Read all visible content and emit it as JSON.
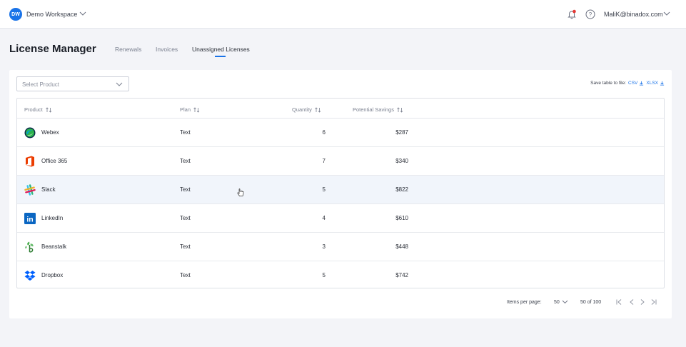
{
  "workspace": {
    "initials": "DW",
    "name": "Demo Workspace"
  },
  "user": {
    "email": "MaliK@binadox.com"
  },
  "page": {
    "title": "License Manager",
    "tabs": [
      {
        "label": "Renewals",
        "active": false
      },
      {
        "label": "Invoices",
        "active": false
      },
      {
        "label": "Unassigned Licenses",
        "active": true
      }
    ]
  },
  "filters": {
    "product_placeholder": "Select Product"
  },
  "export": {
    "label": "Save table to file:",
    "csv": "CSV",
    "xlsx": "XLSX"
  },
  "table": {
    "columns": [
      "Product",
      "Plan",
      "Quantity",
      "Potential Savings"
    ],
    "rows": [
      {
        "product": "Webex",
        "plan": "Text",
        "quantity": "6",
        "savings": "$287",
        "icon": "webex-logo-icon"
      },
      {
        "product": "Office 365",
        "plan": "Text",
        "quantity": "7",
        "savings": "$340",
        "icon": "office365-logo-icon"
      },
      {
        "product": "Slack",
        "plan": "Text",
        "quantity": "5",
        "savings": "$822",
        "icon": "slack-logo-icon"
      },
      {
        "product": "LinkedIn",
        "plan": "Text",
        "quantity": "4",
        "savings": "$610",
        "icon": "linkedin-logo-icon"
      },
      {
        "product": "Beanstalk",
        "plan": "Text",
        "quantity": "3",
        "savings": "$448",
        "icon": "beanstalk-logo-icon"
      },
      {
        "product": "Dropbox",
        "plan": "Text",
        "quantity": "5",
        "savings": "$742",
        "icon": "dropbox-logo-icon"
      }
    ]
  },
  "pagination": {
    "items_per_page_label": "Items per page:",
    "items_per_page": "50",
    "range": "50 of 100"
  },
  "colors": {
    "accent": "#1a73e8",
    "notification": "#e53935",
    "hover_row": "#f1f5fb"
  }
}
